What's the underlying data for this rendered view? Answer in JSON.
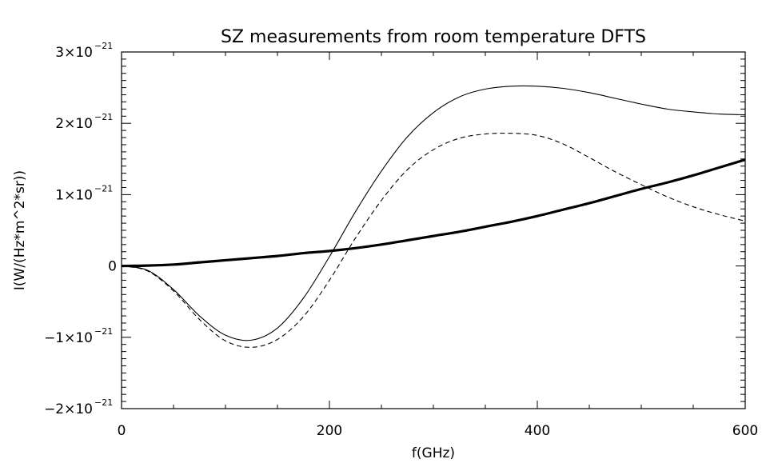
{
  "chart_data": {
    "type": "line",
    "title": "SZ measurements from room temperature DFTS",
    "xlabel": "f(GHz)",
    "ylabel": "I(W/(Hz*m^2*sr))",
    "xlim": [
      0,
      600
    ],
    "ylim": [
      -2e-21,
      3e-21
    ],
    "x_ticks": [
      0,
      200,
      400,
      600
    ],
    "x_tick_labels": [
      "0",
      "200",
      "400",
      "600"
    ],
    "y_ticks": [
      -2e-21,
      -1e-21,
      0,
      1e-21,
      2e-21,
      3e-21
    ],
    "y_tick_labels": [
      {
        "mantissa": "−2×10",
        "exp": "−21"
      },
      {
        "mantissa": "−1×10",
        "exp": "−21"
      },
      {
        "mantissa": "0",
        "exp": ""
      },
      {
        "mantissa": "1×10",
        "exp": "−21"
      },
      {
        "mantissa": "2×10",
        "exp": "−21"
      },
      {
        "mantissa": "3×10",
        "exp": "−21"
      }
    ],
    "grid": false,
    "x": [
      0,
      25,
      50,
      75,
      100,
      125,
      150,
      175,
      200,
      225,
      250,
      275,
      300,
      325,
      350,
      375,
      400,
      425,
      450,
      475,
      500,
      525,
      550,
      575,
      600
    ],
    "series": [
      {
        "style": "solid",
        "values": [
          0,
          -6e-23,
          -3.3e-22,
          -7e-22,
          -9.7e-22,
          -1.04e-21,
          -8.7e-22,
          -4.5e-22,
          1.3e-22,
          7.6e-22,
          1.33e-21,
          1.81e-21,
          2.15e-21,
          2.37e-21,
          2.48e-21,
          2.52e-21,
          2.52e-21,
          2.49e-21,
          2.43e-21,
          2.35e-21,
          2.27e-21,
          2.2e-21,
          2.16e-21,
          2.13e-21,
          2.12e-21
        ]
      },
      {
        "style": "dashed",
        "values": [
          0,
          -7e-23,
          -3.5e-22,
          -7.5e-22,
          -1.05e-21,
          -1.14e-21,
          -1.03e-21,
          -7.1e-22,
          -2e-22,
          3.9e-22,
          9.2e-22,
          1.35e-21,
          1.63e-21,
          1.79e-21,
          1.85e-21,
          1.86e-21,
          1.83e-21,
          1.71e-21,
          1.52e-21,
          1.32e-21,
          1.14e-21,
          9.7e-22,
          8.3e-22,
          7.2e-22,
          6.3e-22
        ]
      },
      {
        "style": "thick",
        "values": [
          0,
          5e-24,
          2e-23,
          5e-23,
          8e-23,
          1.1e-22,
          1.4e-22,
          1.8e-22,
          2.1e-22,
          2.5e-22,
          3e-22,
          3.6e-22,
          4.2e-22,
          4.8e-22,
          5.5e-22,
          6.2e-22,
          7e-22,
          7.9e-22,
          8.8e-22,
          9.8e-22,
          1.08e-21,
          1.17e-21,
          1.27e-21,
          1.38e-21,
          1.49e-21
        ]
      }
    ]
  }
}
